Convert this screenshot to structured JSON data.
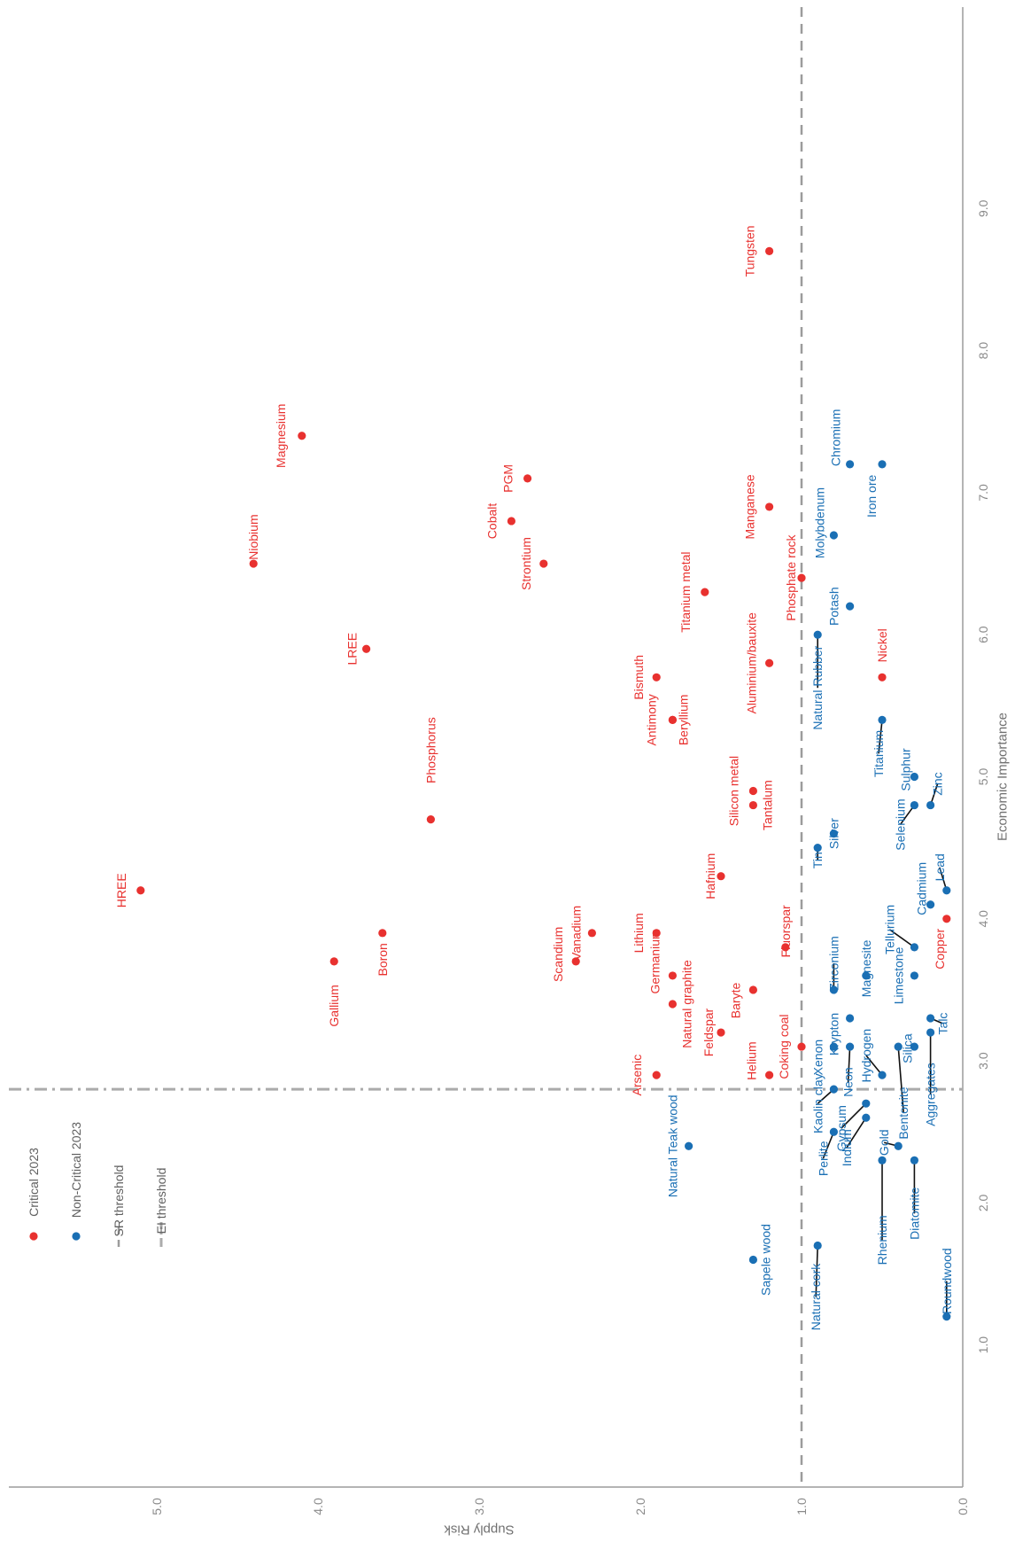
{
  "chart_data": {
    "type": "scatter",
    "orientation": "rotated 90 degrees clockwise",
    "xlabel": "Economic Importance",
    "ylabel": "Supply Risk",
    "xlim": [
      0,
      9.2
    ],
    "ylim": [
      0,
      5.9
    ],
    "x_ticks": [
      "1.0",
      "2.0",
      "3.0",
      "4.0",
      "5.0",
      "6.0",
      "7.0",
      "8.0",
      "9.0"
    ],
    "y_ticks": [
      "0.0",
      "1.0",
      "2.0",
      "3.0",
      "4.0",
      "5.0"
    ],
    "grid": false,
    "legend_position": "bottom-left",
    "legend": [
      {
        "label": "Critical 2023",
        "marker": "dot",
        "color": "#e8312f"
      },
      {
        "label": "Non-Critical 2023",
        "marker": "dot",
        "color": "#1a6fb4"
      },
      {
        "label": "SR threshold",
        "marker": "dash",
        "color": "#9c9c9c"
      },
      {
        "label": "EI threshold",
        "marker": "dashdot",
        "color": "#ababab"
      }
    ],
    "thresholds": {
      "SR": 1.0,
      "EI": 2.8
    },
    "series": [
      {
        "name": "Critical 2023",
        "color": "#e8312f",
        "points": [
          {
            "label": "Tungsten",
            "ei": 8.7,
            "sr": 1.2
          },
          {
            "label": "Magnesium",
            "ei": 7.4,
            "sr": 4.1
          },
          {
            "label": "PGM",
            "ei": 7.1,
            "sr": 2.7
          },
          {
            "label": "Cobalt",
            "ei": 6.8,
            "sr": 2.8
          },
          {
            "label": "Manganese",
            "ei": 6.9,
            "sr": 1.2
          },
          {
            "label": "Niobium",
            "ei": 6.5,
            "sr": 4.4
          },
          {
            "label": "Strontium",
            "ei": 6.5,
            "sr": 2.6
          },
          {
            "label": "Phosphate rock",
            "ei": 6.4,
            "sr": 1.0
          },
          {
            "label": "Titanium metal",
            "ei": 6.3,
            "sr": 1.6
          },
          {
            "label": "LREE",
            "ei": 5.9,
            "sr": 3.7
          },
          {
            "label": "Aluminium/bauxite",
            "ei": 5.8,
            "sr": 1.2
          },
          {
            "label": "Bismuth",
            "ei": 5.7,
            "sr": 1.9
          },
          {
            "label": "Nickel",
            "ei": 5.7,
            "sr": 0.5
          },
          {
            "label": "Antimony",
            "ei": 5.4,
            "sr": 1.8
          },
          {
            "label": "Beryllium",
            "ei": 5.4,
            "sr": 1.8
          },
          {
            "label": "Silicon metal",
            "ei": 4.9,
            "sr": 1.3
          },
          {
            "label": "Tantalum",
            "ei": 4.8,
            "sr": 1.3
          },
          {
            "label": "Phosphorus",
            "ei": 4.7,
            "sr": 3.3
          },
          {
            "label": "Hafnium",
            "ei": 4.3,
            "sr": 1.5
          },
          {
            "label": "HREE",
            "ei": 4.2,
            "sr": 5.1
          },
          {
            "label": "Copper",
            "ei": 4.0,
            "sr": 0.1
          },
          {
            "label": "Vanadium",
            "ei": 3.9,
            "sr": 2.3
          },
          {
            "label": "Lithium",
            "ei": 3.9,
            "sr": 1.9
          },
          {
            "label": "Boron",
            "ei": 3.9,
            "sr": 3.6
          },
          {
            "label": "Fluorspar",
            "ei": 3.8,
            "sr": 1.1
          },
          {
            "label": "Scandium",
            "ei": 3.7,
            "sr": 2.4
          },
          {
            "label": "Gallium",
            "ei": 3.7,
            "sr": 3.9
          },
          {
            "label": "Germanium",
            "ei": 3.6,
            "sr": 1.8
          },
          {
            "label": "Baryte",
            "ei": 3.5,
            "sr": 1.3
          },
          {
            "label": "Natural graphite",
            "ei": 3.4,
            "sr": 1.8
          },
          {
            "label": "Feldspar",
            "ei": 3.2,
            "sr": 1.5
          },
          {
            "label": "Coking coal",
            "ei": 3.1,
            "sr": 1.0
          },
          {
            "label": "Arsenic",
            "ei": 2.9,
            "sr": 1.9
          },
          {
            "label": "Helium",
            "ei": 2.9,
            "sr": 1.2
          }
        ]
      },
      {
        "name": "Non-Critical 2023",
        "color": "#1a6fb4",
        "points": [
          {
            "label": "Chromium",
            "ei": 7.2,
            "sr": 0.7
          },
          {
            "label": "Iron ore",
            "ei": 7.2,
            "sr": 0.5
          },
          {
            "label": "Molybdenum",
            "ei": 6.7,
            "sr": 0.8
          },
          {
            "label": "Potash",
            "ei": 6.2,
            "sr": 0.7
          },
          {
            "label": "Natural Rubber",
            "ei": 6.0,
            "sr": 0.9
          },
          {
            "label": "Titanium",
            "ei": 5.4,
            "sr": 0.5
          },
          {
            "label": "Sulphur",
            "ei": 5.0,
            "sr": 0.3
          },
          {
            "label": "Selenium",
            "ei": 4.8,
            "sr": 0.3
          },
          {
            "label": "Zinc",
            "ei": 4.8,
            "sr": 0.2
          },
          {
            "label": "Silver",
            "ei": 4.6,
            "sr": 0.8
          },
          {
            "label": "Tin",
            "ei": 4.5,
            "sr": 0.9
          },
          {
            "label": "Lead",
            "ei": 4.2,
            "sr": 0.1
          },
          {
            "label": "Cadmium",
            "ei": 4.1,
            "sr": 0.2
          },
          {
            "label": "Tellurium",
            "ei": 3.8,
            "sr": 0.3
          },
          {
            "label": "Magnesite",
            "ei": 3.6,
            "sr": 0.6
          },
          {
            "label": "Limestone",
            "ei": 3.6,
            "sr": 0.3
          },
          {
            "label": "Zirconium",
            "ei": 3.5,
            "sr": 0.8
          },
          {
            "label": "Krypton",
            "ei": 3.3,
            "sr": 0.7
          },
          {
            "label": "Talc",
            "ei": 3.3,
            "sr": 0.2
          },
          {
            "label": "Aggregates",
            "ei": 3.2,
            "sr": 0.2
          },
          {
            "label": "Xenon",
            "ei": 3.1,
            "sr": 0.8
          },
          {
            "label": "Neon",
            "ei": 3.1,
            "sr": 0.7
          },
          {
            "label": "Silica",
            "ei": 3.1,
            "sr": 0.3
          },
          {
            "label": "Bentonite",
            "ei": 3.1,
            "sr": 0.4
          },
          {
            "label": "Hydrogen",
            "ei": 2.9,
            "sr": 0.5
          },
          {
            "label": "Kaolin clay",
            "ei": 2.8,
            "sr": 0.8
          },
          {
            "label": "Gypsum",
            "ei": 2.7,
            "sr": 0.6
          },
          {
            "label": "Indium",
            "ei": 2.6,
            "sr": 0.6
          },
          {
            "label": "Perlite",
            "ei": 2.5,
            "sr": 0.8
          },
          {
            "label": "Natural Teak wood",
            "ei": 2.4,
            "sr": 1.7
          },
          {
            "label": "Gold",
            "ei": 2.4,
            "sr": 0.4
          },
          {
            "label": "Rhenium",
            "ei": 2.3,
            "sr": 0.5
          },
          {
            "label": "Diatomite",
            "ei": 2.3,
            "sr": 0.3
          },
          {
            "label": "Natural cork",
            "ei": 1.7,
            "sr": 0.9
          },
          {
            "label": "Sapele wood",
            "ei": 1.6,
            "sr": 1.3
          },
          {
            "label": "Roundwood",
            "ei": 1.2,
            "sr": 0.1
          }
        ]
      }
    ]
  }
}
